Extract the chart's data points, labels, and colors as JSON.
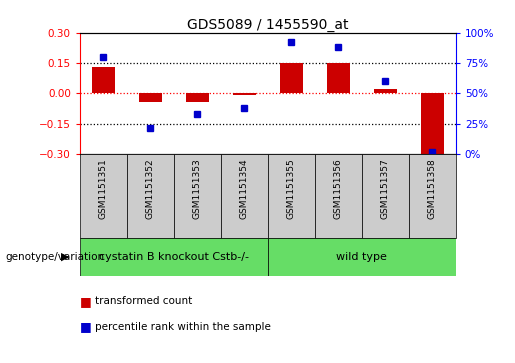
{
  "title": "GDS5089 / 1455590_at",
  "samples": [
    "GSM1151351",
    "GSM1151352",
    "GSM1151353",
    "GSM1151354",
    "GSM1151355",
    "GSM1151356",
    "GSM1151357",
    "GSM1151358"
  ],
  "bar_values": [
    0.13,
    -0.04,
    -0.04,
    -0.01,
    0.15,
    0.15,
    0.02,
    -0.3
  ],
  "percentile_values": [
    80,
    22,
    33,
    38,
    92,
    88,
    60,
    2
  ],
  "bar_color": "#cc0000",
  "dot_color": "#0000cc",
  "ylim": [
    -0.3,
    0.3
  ],
  "y2lim": [
    0,
    100
  ],
  "yticks": [
    -0.3,
    -0.15,
    0.0,
    0.15,
    0.3
  ],
  "y2ticks": [
    0,
    25,
    50,
    75,
    100
  ],
  "group1_label": "cystatin B knockout Cstb-/-",
  "group2_label": "wild type",
  "group1_indices": [
    0,
    1,
    2,
    3
  ],
  "group2_indices": [
    4,
    5,
    6,
    7
  ],
  "group_color": "#66dd66",
  "genotype_label": "genotype/variation",
  "legend1_label": "transformed count",
  "legend2_label": "percentile rank within the sample",
  "xlabel_area_bg": "#cccccc",
  "title_fontsize": 10,
  "tick_fontsize": 7.5,
  "sample_fontsize": 6.5,
  "group_fontsize": 8,
  "legend_fontsize": 7.5,
  "genotype_fontsize": 7.5
}
